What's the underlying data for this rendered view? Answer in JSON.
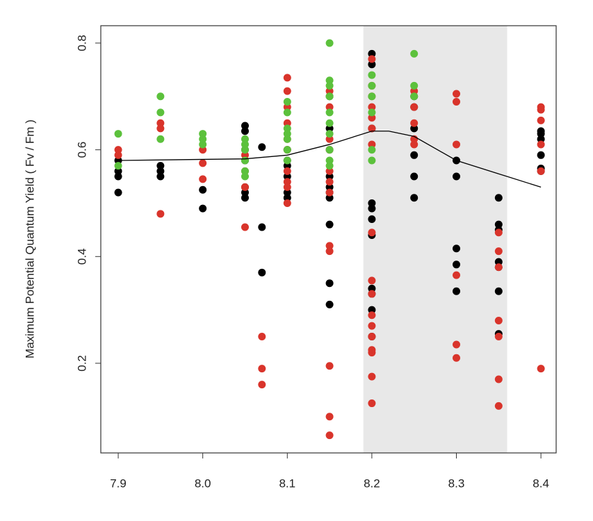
{
  "chart_data": {
    "type": "scatter",
    "ylabel": "Maximum Potential Quantum Yield ( Fv / Fm )",
    "xlim": [
      7.8794,
      8.418
    ],
    "ylim": [
      0.032,
      0.8325
    ],
    "xticks": [
      {
        "value": 7.9,
        "label": "7.9"
      },
      {
        "value": 8.0,
        "label": "8.0"
      },
      {
        "value": 8.1,
        "label": "8.1"
      },
      {
        "value": 8.2,
        "label": "8.2"
      },
      {
        "value": 8.3,
        "label": "8.3"
      },
      {
        "value": 8.4,
        "label": "8.4"
      }
    ],
    "yticks": [
      0.2,
      0.4,
      0.6,
      0.8
    ],
    "shaded_xrange": [
      8.19,
      8.36
    ],
    "shade_color": "#e8e8e8",
    "series": [
      {
        "color": "#000000",
        "x": [
          7.9,
          7.9,
          7.9,
          7.9,
          7.95,
          7.95,
          7.95,
          8.0,
          8.0,
          8.05,
          8.05,
          8.05,
          8.05,
          8.05,
          8.05,
          8.05,
          8.07,
          8.07,
          8.07,
          8.1,
          8.1,
          8.1,
          8.1,
          8.1,
          8.1,
          8.15,
          8.15,
          8.15,
          8.15,
          8.15,
          8.15,
          8.15,
          8.15,
          8.15,
          8.15,
          8.2,
          8.2,
          8.2,
          8.2,
          8.2,
          8.2,
          8.2,
          8.2,
          8.2,
          8.2,
          8.2,
          8.25,
          8.25,
          8.25,
          8.25,
          8.25,
          8.25,
          8.3,
          8.3,
          8.3,
          8.3,
          8.3,
          8.35,
          8.35,
          8.35,
          8.35,
          8.35,
          8.35,
          8.35,
          8.4,
          8.4,
          8.4,
          8.4,
          8.4,
          8.4
        ],
        "values": [
          0.58,
          0.56,
          0.55,
          0.52,
          0.57,
          0.56,
          0.55,
          0.525,
          0.49,
          0.645,
          0.635,
          0.6,
          0.58,
          0.53,
          0.52,
          0.51,
          0.605,
          0.455,
          0.37,
          0.6,
          0.58,
          0.57,
          0.55,
          0.52,
          0.51,
          0.7,
          0.64,
          0.6,
          0.55,
          0.53,
          0.52,
          0.51,
          0.46,
          0.35,
          0.31,
          0.78,
          0.76,
          0.64,
          0.5,
          0.49,
          0.47,
          0.44,
          0.34,
          0.33,
          0.3,
          0.25,
          0.7,
          0.68,
          0.64,
          0.59,
          0.55,
          0.51,
          0.58,
          0.55,
          0.415,
          0.385,
          0.335,
          0.51,
          0.46,
          0.45,
          0.39,
          0.38,
          0.335,
          0.255,
          0.635,
          0.63,
          0.62,
          0.59,
          0.565,
          0.56
        ]
      },
      {
        "color": "#d9342b",
        "x": [
          7.9,
          7.9,
          7.95,
          7.95,
          7.95,
          8.0,
          8.0,
          8.0,
          8.05,
          8.05,
          8.05,
          8.05,
          8.07,
          8.07,
          8.07,
          8.1,
          8.1,
          8.1,
          8.1,
          8.1,
          8.1,
          8.1,
          8.1,
          8.1,
          8.1,
          8.15,
          8.15,
          8.15,
          8.15,
          8.15,
          8.15,
          8.15,
          8.15,
          8.15,
          8.15,
          8.15,
          8.15,
          8.2,
          8.2,
          8.2,
          8.2,
          8.2,
          8.2,
          8.2,
          8.2,
          8.2,
          8.2,
          8.2,
          8.2,
          8.2,
          8.2,
          8.2,
          8.2,
          8.2,
          8.25,
          8.25,
          8.25,
          8.25,
          8.25,
          8.3,
          8.3,
          8.3,
          8.3,
          8.3,
          8.3,
          8.35,
          8.35,
          8.35,
          8.35,
          8.35,
          8.35,
          8.35,
          8.4,
          8.4,
          8.4,
          8.4,
          8.4,
          8.4
        ],
        "values": [
          0.6,
          0.59,
          0.65,
          0.64,
          0.48,
          0.6,
          0.575,
          0.545,
          0.59,
          0.56,
          0.53,
          0.455,
          0.25,
          0.19,
          0.16,
          0.735,
          0.71,
          0.68,
          0.65,
          0.62,
          0.6,
          0.56,
          0.54,
          0.53,
          0.5,
          0.71,
          0.68,
          0.62,
          0.6,
          0.56,
          0.54,
          0.52,
          0.42,
          0.41,
          0.195,
          0.1,
          0.065,
          0.77,
          0.72,
          0.7,
          0.68,
          0.66,
          0.64,
          0.61,
          0.445,
          0.355,
          0.33,
          0.29,
          0.27,
          0.25,
          0.225,
          0.22,
          0.175,
          0.125,
          0.71,
          0.68,
          0.65,
          0.62,
          0.61,
          0.705,
          0.69,
          0.61,
          0.365,
          0.235,
          0.21,
          0.445,
          0.41,
          0.38,
          0.28,
          0.25,
          0.17,
          0.12,
          0.68,
          0.675,
          0.655,
          0.61,
          0.56,
          0.19
        ]
      },
      {
        "color": "#5cc13c",
        "x": [
          7.9,
          7.9,
          7.95,
          7.95,
          7.95,
          8.0,
          8.0,
          8.0,
          8.05,
          8.05,
          8.05,
          8.05,
          8.05,
          8.05,
          8.1,
          8.1,
          8.1,
          8.1,
          8.1,
          8.1,
          8.1,
          8.15,
          8.15,
          8.15,
          8.15,
          8.15,
          8.15,
          8.15,
          8.15,
          8.15,
          8.15,
          8.2,
          8.2,
          8.2,
          8.2,
          8.2,
          8.2,
          8.25,
          8.25,
          8.25
        ],
        "values": [
          0.63,
          0.57,
          0.7,
          0.67,
          0.62,
          0.63,
          0.62,
          0.61,
          0.62,
          0.61,
          0.6,
          0.58,
          0.56,
          0.55,
          0.69,
          0.67,
          0.64,
          0.63,
          0.62,
          0.6,
          0.58,
          0.8,
          0.73,
          0.72,
          0.7,
          0.67,
          0.65,
          0.63,
          0.6,
          0.58,
          0.57,
          0.74,
          0.72,
          0.7,
          0.67,
          0.6,
          0.58,
          0.78,
          0.72,
          0.7
        ]
      }
    ],
    "curve": {
      "color": "#000000",
      "x": [
        7.9,
        8.0,
        8.05,
        8.1,
        8.15,
        8.2,
        8.22,
        8.25,
        8.3,
        8.35,
        8.4
      ],
      "values": [
        0.58,
        0.582,
        0.583,
        0.59,
        0.61,
        0.635,
        0.635,
        0.625,
        0.58,
        0.555,
        0.53
      ]
    }
  }
}
